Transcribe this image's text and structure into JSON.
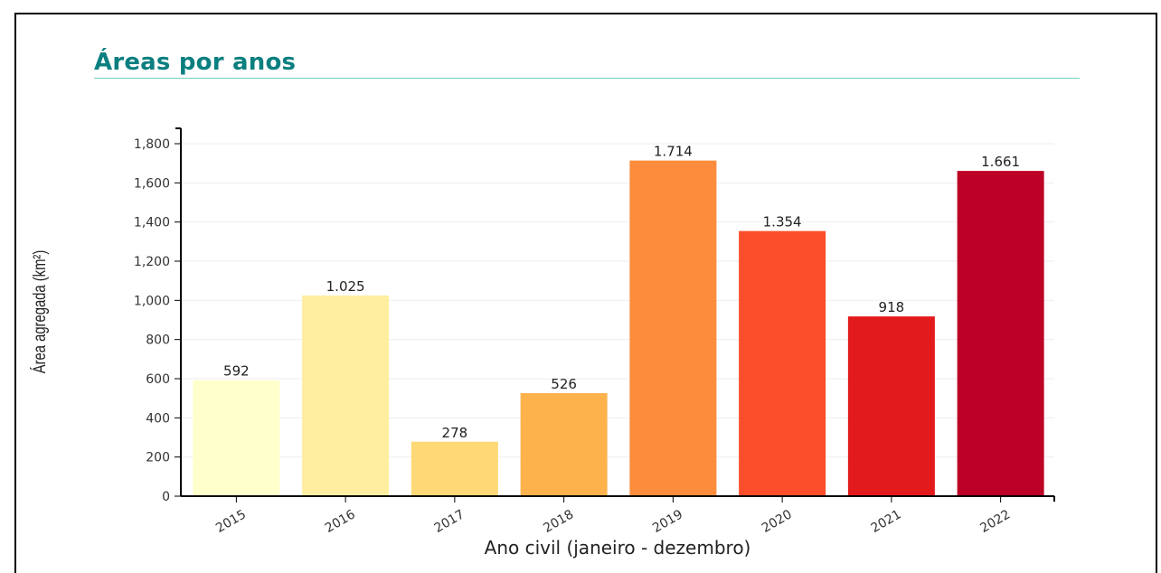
{
  "page": {
    "title": "Áreas por anos"
  },
  "chart_data": {
    "type": "bar",
    "title": "Áreas por anos",
    "xlabel": "Ano civil (janeiro - dezembro)",
    "ylabel": "Área agregada (km²)",
    "categories": [
      "2015",
      "2016",
      "2017",
      "2018",
      "2019",
      "2020",
      "2021",
      "2022"
    ],
    "values": [
      592,
      1025,
      278,
      526,
      1714,
      1354,
      918,
      1661
    ],
    "value_labels": [
      "592",
      "1.025",
      "278",
      "526",
      "1.714",
      "1.354",
      "918",
      "1.661"
    ],
    "colors": [
      "#FFFFCC",
      "#FFEDA0",
      "#FED976",
      "#FEB24C",
      "#FD8D3C",
      "#FC4E2A",
      "#E31A1C",
      "#BD0026"
    ],
    "ylim": [
      0,
      1800
    ],
    "yticks": [
      0,
      200,
      400,
      600,
      800,
      1000,
      1200,
      1400,
      1600,
      1800
    ],
    "ytick_labels": [
      "0",
      "200",
      "400",
      "600",
      "800",
      "1,000",
      "1,200",
      "1,400",
      "1,600",
      "1,800"
    ],
    "grid": true,
    "accent_color": "#0b7f80"
  }
}
